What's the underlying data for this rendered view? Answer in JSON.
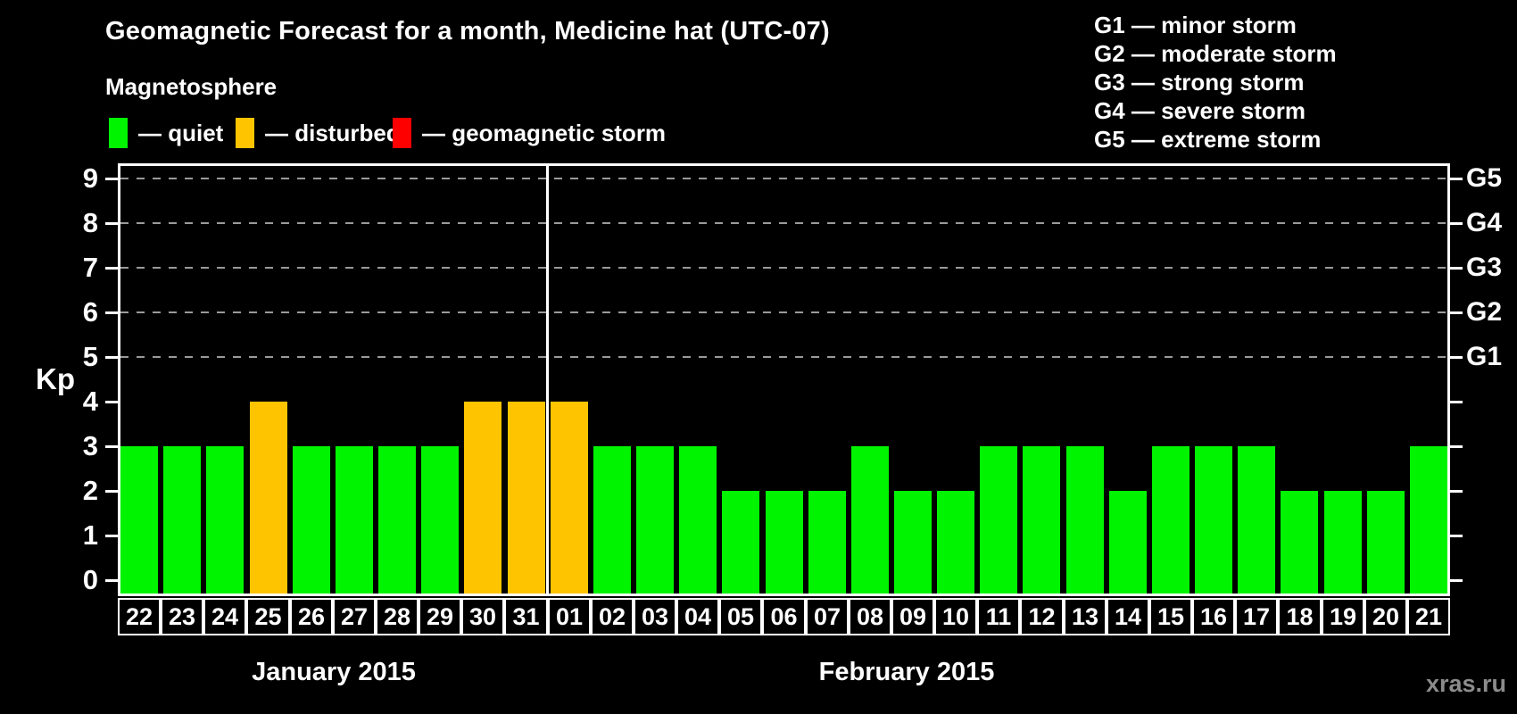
{
  "header": {
    "title": "Geomagnetic Forecast for a month, Medicine hat (UTC-07)",
    "subtitle": "Magnetosphere"
  },
  "legend": {
    "items": [
      {
        "status": "quiet",
        "label": "— quiet",
        "color": "#00f400"
      },
      {
        "status": "disturbed",
        "label": "— disturbed",
        "color": "#ffc400"
      },
      {
        "status": "storm",
        "label": "— geomagnetic storm",
        "color": "#ff0000"
      }
    ]
  },
  "g_legend": {
    "items": [
      "G1 — minor storm",
      "G2 — moderate storm",
      "G3 — strong storm",
      "G4 — severe storm",
      "G5 — extreme storm"
    ]
  },
  "axis": {
    "y_label": "Kp"
  },
  "watermark": "xras.ru",
  "colors": {
    "quiet": "#00f400",
    "disturbed": "#ffc400",
    "storm": "#ff0000",
    "grid": "#9a9a9a",
    "frame": "#ffffff",
    "watermark": "#8c8c8c"
  },
  "chart_data": {
    "type": "bar",
    "title": "Geomagnetic Forecast for a month, Medicine hat (UTC-07)",
    "ylabel": "Kp",
    "ylim": [
      0,
      9
    ],
    "y_ticks": [
      0,
      1,
      2,
      3,
      4,
      5,
      6,
      7,
      8,
      9
    ],
    "grid_levels": [
      5,
      6,
      7,
      8,
      9
    ],
    "right_axis": [
      {
        "kp": 5,
        "label": "G1"
      },
      {
        "kp": 6,
        "label": "G2"
      },
      {
        "kp": 7,
        "label": "G3"
      },
      {
        "kp": 8,
        "label": "G4"
      },
      {
        "kp": 9,
        "label": "G5"
      }
    ],
    "thresholds": {
      "disturbed_min_kp": 4,
      "storm_min_kp": 5
    },
    "groups": [
      {
        "month": "January 2015",
        "days": [
          "22",
          "23",
          "24",
          "25",
          "26",
          "27",
          "28",
          "29",
          "30",
          "31"
        ],
        "kp_values": [
          3,
          3,
          3,
          4,
          3,
          3,
          3,
          3,
          4,
          4
        ]
      },
      {
        "month": "February 2015",
        "days": [
          "01",
          "02",
          "03",
          "04",
          "05",
          "06",
          "07",
          "08",
          "09",
          "10",
          "11",
          "12",
          "13",
          "14",
          "15",
          "16",
          "17",
          "18",
          "19",
          "20",
          "21"
        ],
        "kp_values": [
          4,
          3,
          3,
          3,
          2,
          2,
          2,
          3,
          2,
          2,
          3,
          3,
          3,
          2,
          3,
          3,
          3,
          2,
          2,
          2,
          3
        ]
      }
    ]
  }
}
